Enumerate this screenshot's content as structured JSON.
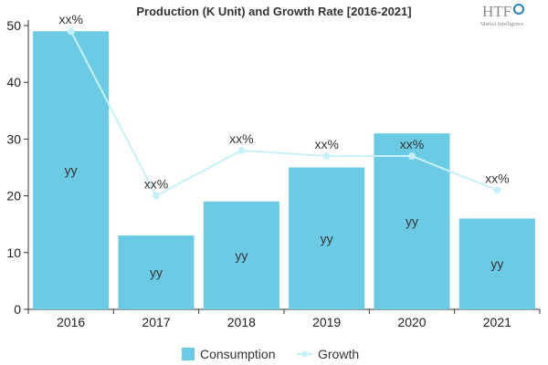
{
  "chart_data": {
    "type": "bar",
    "title": "Production (K Unit) and Growth Rate [2016-2021]",
    "categories": [
      "2016",
      "2017",
      "2018",
      "2019",
      "2020",
      "2021"
    ],
    "ylim": [
      0,
      50
    ],
    "yticks": [
      0,
      10,
      20,
      30,
      40,
      50
    ],
    "grid": false,
    "legend_position": "bottom",
    "series": [
      {
        "name": "Consumption",
        "type": "bar",
        "color": "#6ccbe4",
        "values": [
          49,
          13,
          19,
          25,
          31,
          16
        ],
        "labels": [
          "yy",
          "yy",
          "yy",
          "yy",
          "yy",
          "yy"
        ]
      },
      {
        "name": "Growth",
        "type": "line",
        "color": "#c8f0f8",
        "values": [
          49,
          20,
          28,
          27,
          27,
          21
        ],
        "labels": [
          "xx%",
          "xx%",
          "xx%",
          "xx%",
          "xx%",
          "xx%"
        ]
      }
    ]
  },
  "logo": {
    "text": "HTF",
    "subtext": "Market Intelligence"
  }
}
